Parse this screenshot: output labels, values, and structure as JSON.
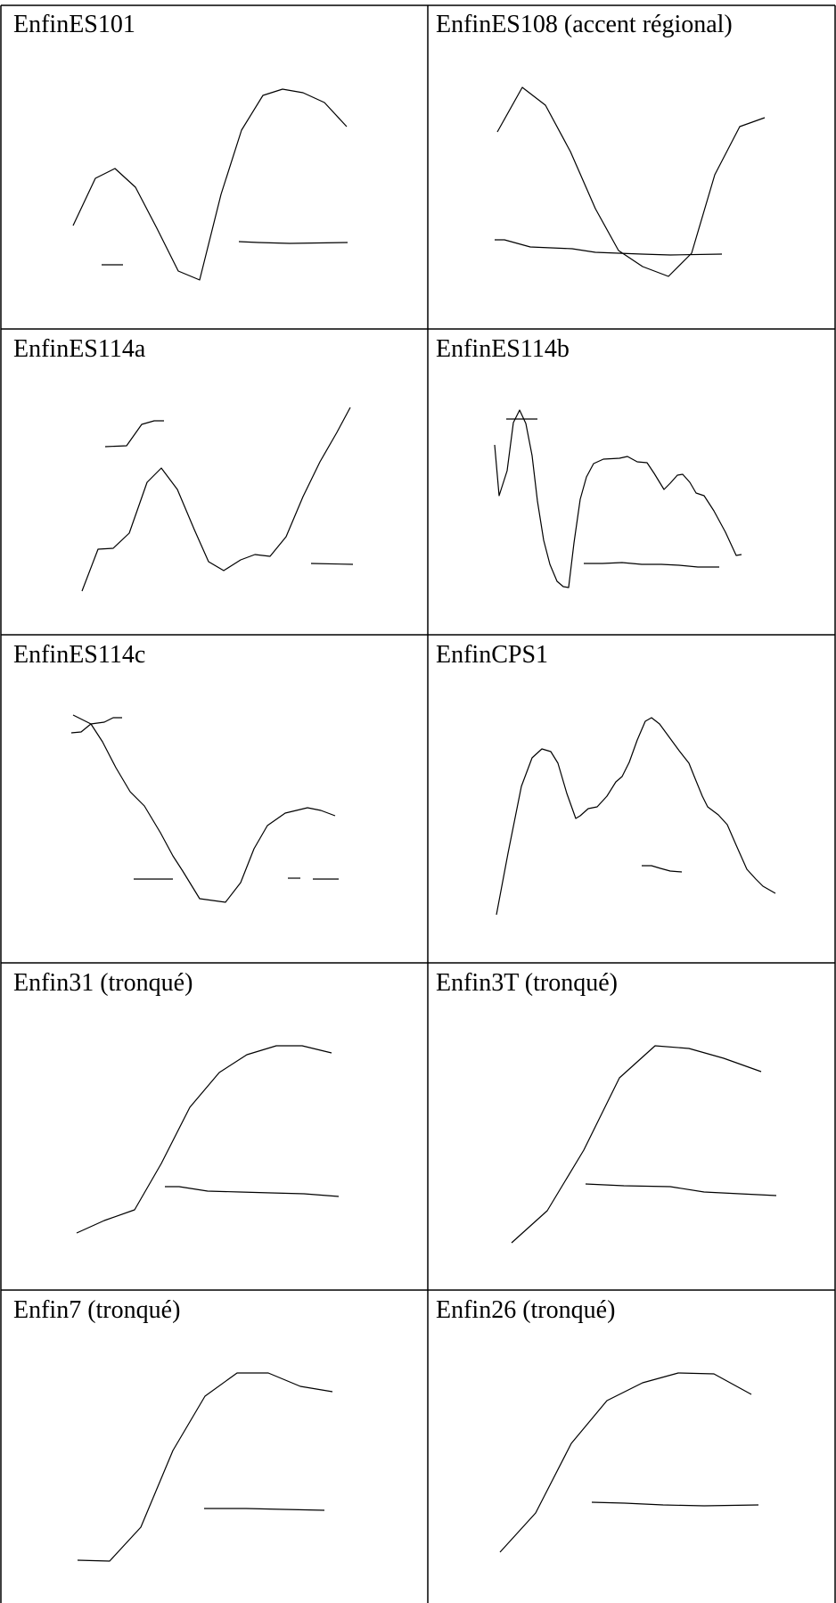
{
  "panels": [
    {
      "label": "EnfinES101"
    },
    {
      "label": "EnfinES108 (accent régional)"
    },
    {
      "label": "EnfinES114a"
    },
    {
      "label": "EnfinES114b"
    },
    {
      "label": "EnfinES114c"
    },
    {
      "label": "EnfinCPS1"
    },
    {
      "label": "Enfin31 (tronqué)"
    },
    {
      "label": "Enfin3T (tronqué)"
    },
    {
      "label": "Enfin7 (tronqué)"
    },
    {
      "label": "Enfin26 (tronqué)"
    }
  ]
}
